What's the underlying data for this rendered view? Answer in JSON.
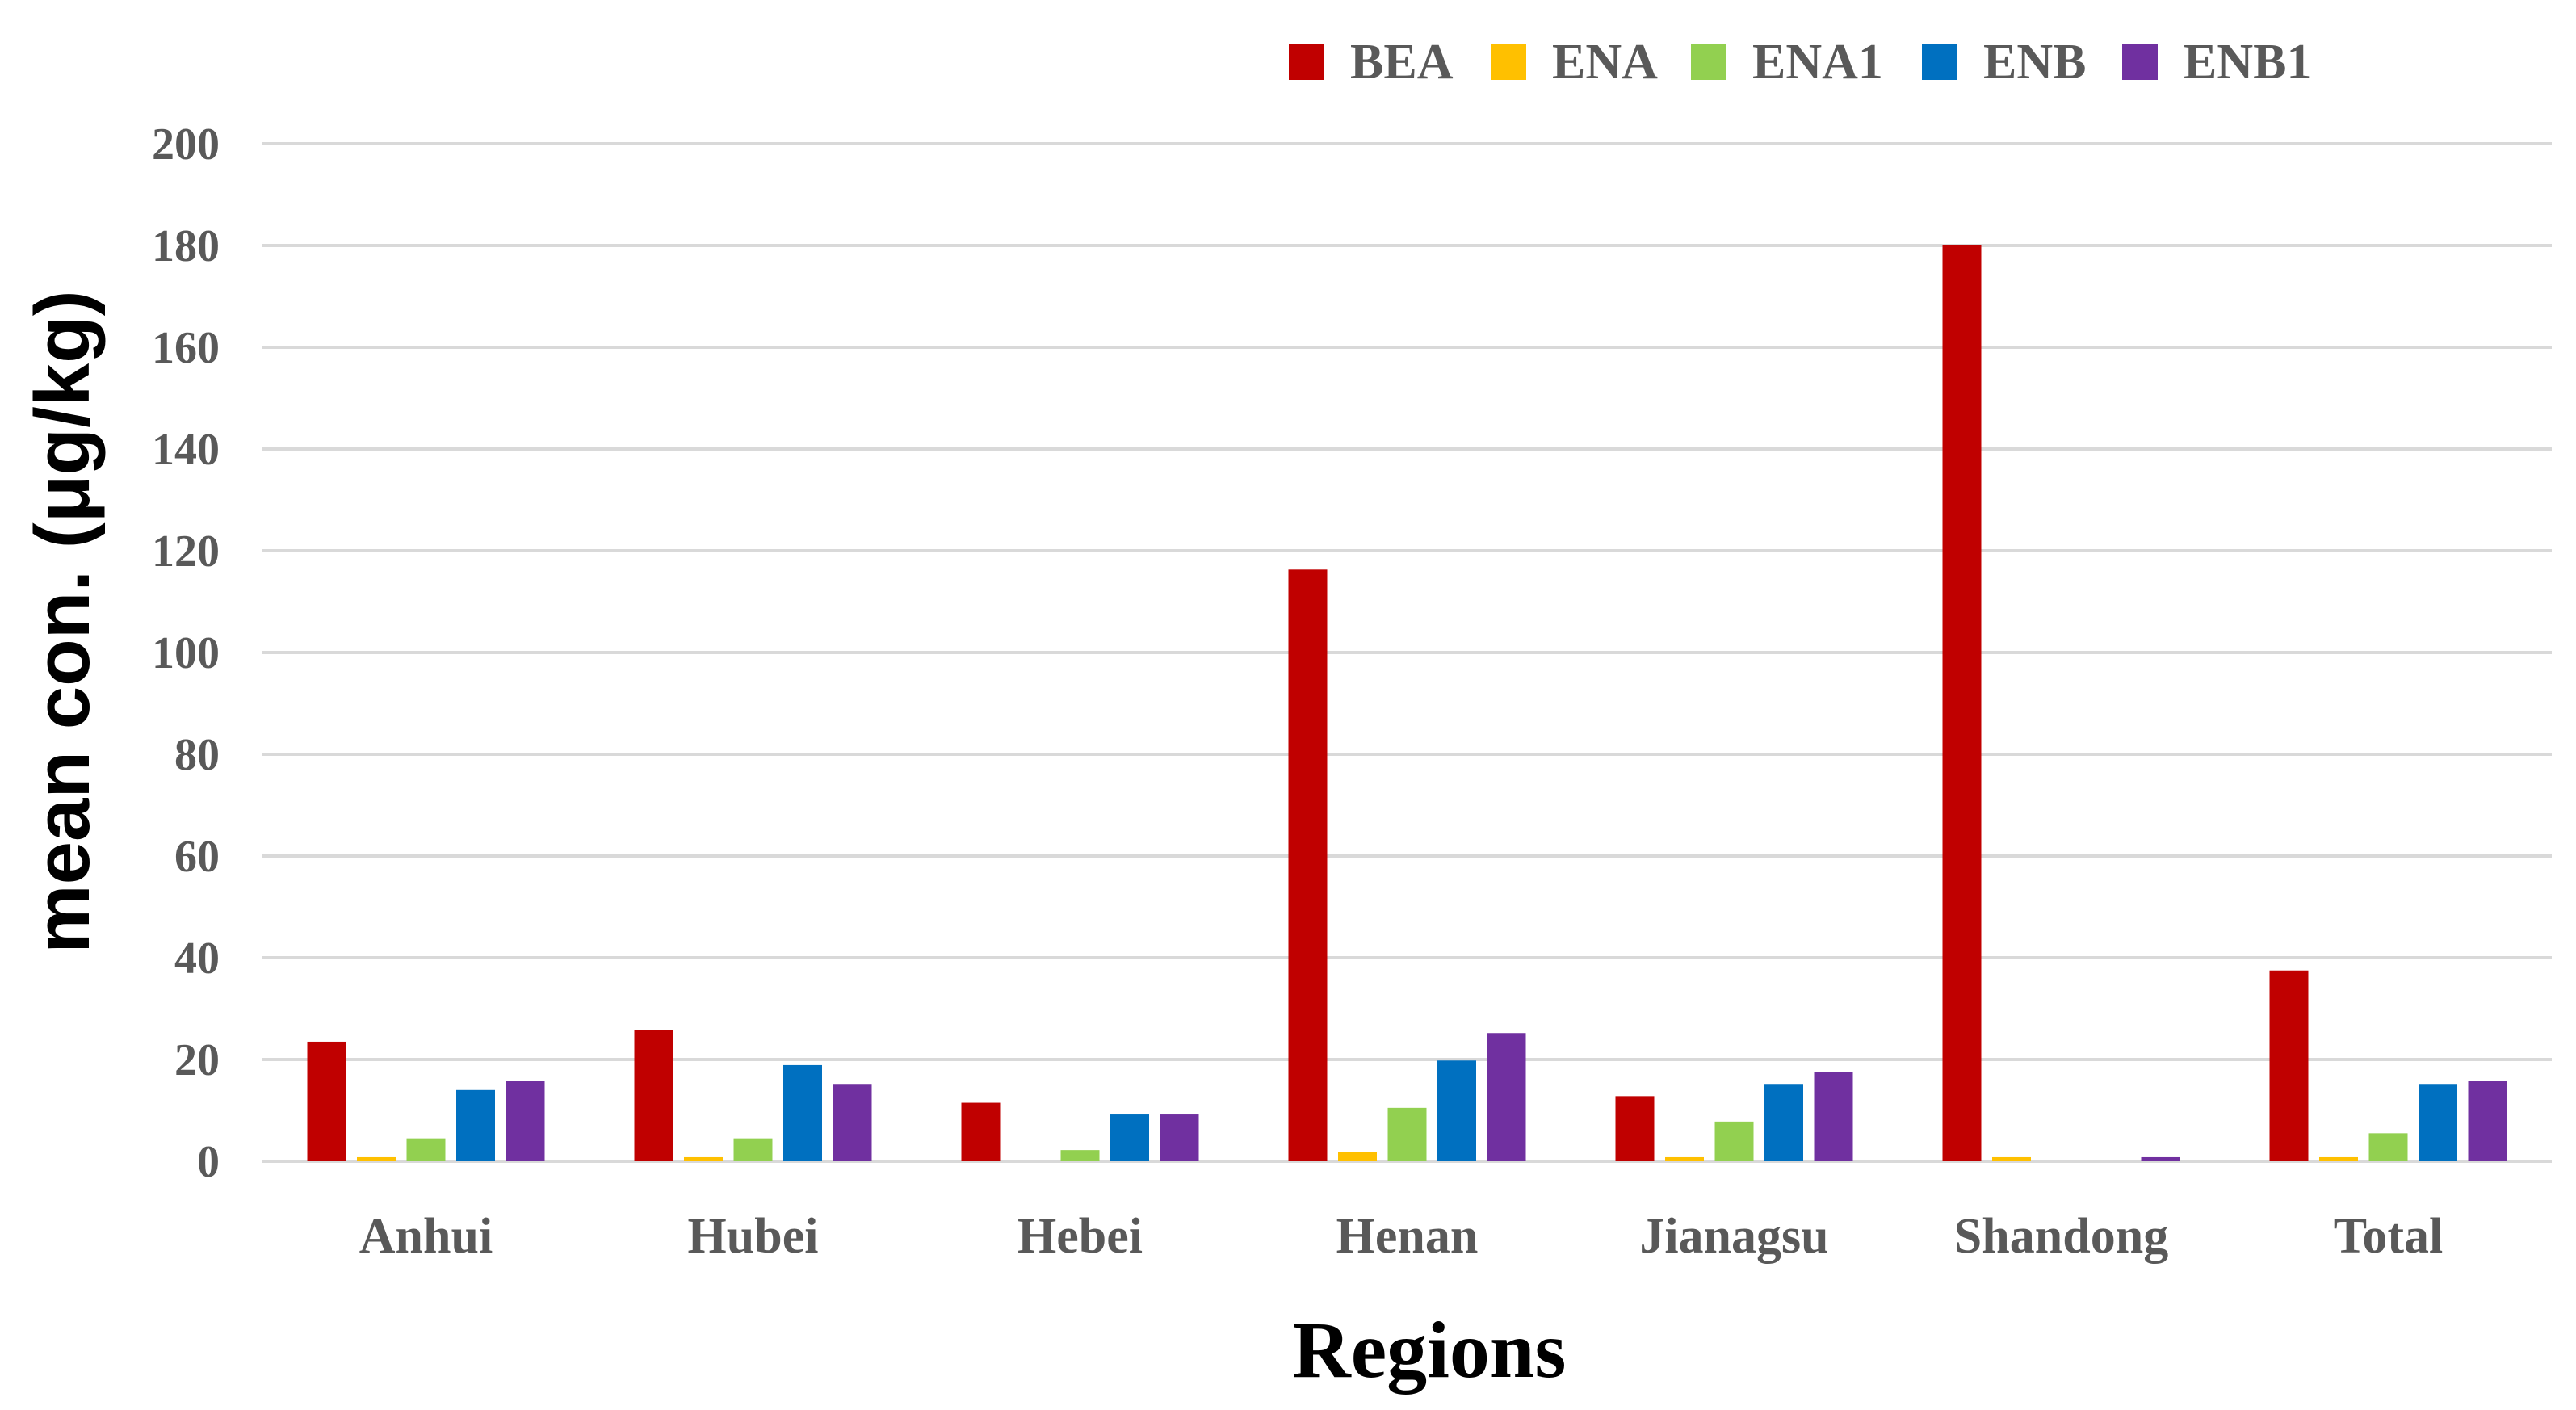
{
  "chart_data": {
    "type": "bar",
    "xlabel": "Regions",
    "ylabel": "mean con. (μg/kg)",
    "ylim": [
      0,
      200
    ],
    "yticks": [
      0,
      20,
      40,
      60,
      80,
      100,
      120,
      140,
      160,
      180,
      200
    ],
    "grid": true,
    "legend_position": "top-right",
    "categories": [
      "Anhui",
      "Hubei",
      "Hebei",
      "Henan",
      "Jianagsu",
      "Shandong",
      "Total"
    ],
    "series": [
      {
        "name": "BEA",
        "color": "#C00000",
        "values": [
          23.5,
          25.8,
          11.5,
          116.3,
          12.8,
          180,
          37.5
        ]
      },
      {
        "name": "ENA",
        "color": "#FFC000",
        "values": [
          0.8,
          0.8,
          0,
          1.8,
          0.8,
          0.8,
          0.8
        ]
      },
      {
        "name": "ENA1",
        "color": "#92D050",
        "values": [
          4.5,
          4.5,
          2.2,
          10.5,
          7.8,
          0,
          5.5
        ]
      },
      {
        "name": "ENB",
        "color": "#0070C0",
        "values": [
          14,
          18.9,
          9.2,
          19.8,
          15.2,
          0,
          15.2
        ]
      },
      {
        "name": "ENB1",
        "color": "#7030A0",
        "values": [
          15.8,
          15.2,
          9.2,
          25.2,
          17.5,
          0.8,
          15.8
        ]
      }
    ]
  }
}
